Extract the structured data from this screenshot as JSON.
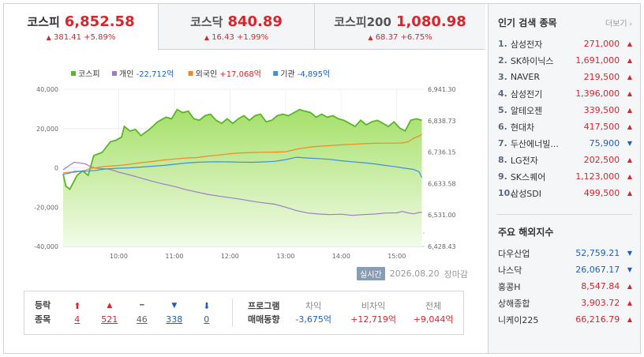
{
  "tabs": [
    {
      "name": "코스피",
      "value": "6,852.58",
      "change": "381.41 +5.89%",
      "arrow": "▲"
    },
    {
      "name": "코스닥",
      "value": "840.89",
      "change": "16.43 +1.99%",
      "arrow": "▲"
    },
    {
      "name": "코스피200",
      "value": "1,080.98",
      "change": "68.37 +6.75%",
      "arrow": "▲"
    }
  ],
  "legend": [
    {
      "label": "코스피",
      "value": "",
      "color": "#5bb52b"
    },
    {
      "label": "개인",
      "value": "-22,712억",
      "color": "#9b7fc4"
    },
    {
      "label": "외국인",
      "value": "+17,068억",
      "color": "#ee8a24"
    },
    {
      "label": "기관",
      "value": "-4,895억",
      "color": "#3d8fe0"
    }
  ],
  "chart_data": {
    "type": "line",
    "x_ticks": [
      "10:00",
      "11:00",
      "12:00",
      "13:00",
      "14:00",
      "15:00"
    ],
    "y_left_ticks": [
      "40,000",
      "20,000",
      "0",
      "-20,000",
      "-40,000"
    ],
    "y_right_ticks": [
      "6,941.30",
      "6,838.73",
      "6,736.15",
      "6,633.58",
      "6,531.00",
      "6,428.43"
    ],
    "y_left_range": [
      -40000,
      40000
    ],
    "y_right_range": [
      6428.43,
      6941.3
    ],
    "x_range": [
      9.0,
      15.5
    ],
    "series": [
      {
        "name": "코스피",
        "axis": "right",
        "color": "#5bb52b",
        "points": [
          [
            9.0,
            6665
          ],
          [
            9.05,
            6625
          ],
          [
            9.12,
            6615
          ],
          [
            9.25,
            6660
          ],
          [
            9.35,
            6675
          ],
          [
            9.45,
            6660
          ],
          [
            9.55,
            6725
          ],
          [
            9.7,
            6735
          ],
          [
            9.85,
            6770
          ],
          [
            9.95,
            6775
          ],
          [
            10.05,
            6785
          ],
          [
            10.1,
            6820
          ],
          [
            10.2,
            6805
          ],
          [
            10.3,
            6810
          ],
          [
            10.4,
            6790
          ],
          [
            10.55,
            6810
          ],
          [
            10.7,
            6835
          ],
          [
            10.85,
            6850
          ],
          [
            10.95,
            6845
          ],
          [
            11.05,
            6875
          ],
          [
            11.15,
            6865
          ],
          [
            11.25,
            6870
          ],
          [
            11.35,
            6845
          ],
          [
            11.45,
            6840
          ],
          [
            11.55,
            6855
          ],
          [
            11.65,
            6860
          ],
          [
            11.75,
            6840
          ],
          [
            11.85,
            6830
          ],
          [
            11.95,
            6845
          ],
          [
            12.05,
            6830
          ],
          [
            12.15,
            6845
          ],
          [
            12.25,
            6855
          ],
          [
            12.35,
            6840
          ],
          [
            12.45,
            6855
          ],
          [
            12.55,
            6860
          ],
          [
            12.65,
            6835
          ],
          [
            12.75,
            6840
          ],
          [
            12.85,
            6855
          ],
          [
            12.95,
            6860
          ],
          [
            13.05,
            6855
          ],
          [
            13.15,
            6865
          ],
          [
            13.25,
            6875
          ],
          [
            13.35,
            6870
          ],
          [
            13.45,
            6865
          ],
          [
            13.55,
            6850
          ],
          [
            13.65,
            6860
          ],
          [
            13.75,
            6850
          ],
          [
            13.85,
            6855
          ],
          [
            13.95,
            6845
          ],
          [
            14.05,
            6840
          ],
          [
            14.15,
            6830
          ],
          [
            14.25,
            6820
          ],
          [
            14.35,
            6840
          ],
          [
            14.45,
            6825
          ],
          [
            14.55,
            6835
          ],
          [
            14.65,
            6840
          ],
          [
            14.75,
            6830
          ],
          [
            14.85,
            6820
          ],
          [
            14.95,
            6835
          ],
          [
            15.05,
            6815
          ],
          [
            15.15,
            6805
          ],
          [
            15.25,
            6840
          ],
          [
            15.35,
            6845
          ],
          [
            15.45,
            6840
          ]
        ]
      },
      {
        "name": "개인",
        "axis": "left",
        "color": "#9b7fc4",
        "points": [
          [
            9.0,
            -1000
          ],
          [
            9.1,
            1000
          ],
          [
            9.2,
            2800
          ],
          [
            9.3,
            2500
          ],
          [
            9.4,
            2000
          ],
          [
            9.5,
            500
          ],
          [
            9.6,
            -200
          ],
          [
            9.7,
            -400
          ],
          [
            9.8,
            -600
          ],
          [
            9.9,
            -1200
          ],
          [
            10.0,
            -2200
          ],
          [
            10.2,
            -3600
          ],
          [
            10.4,
            -5200
          ],
          [
            10.6,
            -6800
          ],
          [
            10.8,
            -8200
          ],
          [
            11.0,
            -9500
          ],
          [
            11.2,
            -11000
          ],
          [
            11.4,
            -12300
          ],
          [
            11.6,
            -13500
          ],
          [
            11.8,
            -14400
          ],
          [
            12.0,
            -15200
          ],
          [
            12.2,
            -16000
          ],
          [
            12.4,
            -17000
          ],
          [
            12.6,
            -17800
          ],
          [
            12.8,
            -18500
          ],
          [
            13.0,
            -20000
          ],
          [
            13.2,
            -21800
          ],
          [
            13.4,
            -23000
          ],
          [
            13.6,
            -23500
          ],
          [
            13.8,
            -23800
          ],
          [
            14.0,
            -23600
          ],
          [
            14.2,
            -24200
          ],
          [
            14.4,
            -23800
          ],
          [
            14.6,
            -23500
          ],
          [
            14.8,
            -23000
          ],
          [
            15.0,
            -22900
          ],
          [
            15.1,
            -22200
          ],
          [
            15.2,
            -22900
          ],
          [
            15.3,
            -23400
          ],
          [
            15.4,
            -22700
          ],
          [
            15.45,
            -22712
          ]
        ]
      },
      {
        "name": "외국인",
        "axis": "left",
        "color": "#ee8a24",
        "points": [
          [
            9.0,
            -2500
          ],
          [
            9.1,
            -2200
          ],
          [
            9.2,
            -2300
          ],
          [
            9.3,
            -1800
          ],
          [
            9.4,
            -1200
          ],
          [
            9.5,
            -200
          ],
          [
            9.6,
            100
          ],
          [
            9.7,
            600
          ],
          [
            9.8,
            800
          ],
          [
            10.0,
            1200
          ],
          [
            10.2,
            1800
          ],
          [
            10.4,
            2600
          ],
          [
            10.6,
            3200
          ],
          [
            10.8,
            4000
          ],
          [
            11.0,
            4500
          ],
          [
            11.2,
            5000
          ],
          [
            11.4,
            5200
          ],
          [
            11.6,
            6000
          ],
          [
            11.8,
            6500
          ],
          [
            12.0,
            7200
          ],
          [
            12.2,
            7600
          ],
          [
            12.4,
            7800
          ],
          [
            12.6,
            7900
          ],
          [
            12.8,
            8000
          ],
          [
            13.0,
            8200
          ],
          [
            13.2,
            9500
          ],
          [
            13.4,
            10400
          ],
          [
            13.6,
            11000
          ],
          [
            13.8,
            11300
          ],
          [
            14.0,
            11700
          ],
          [
            14.2,
            12000
          ],
          [
            14.4,
            12300
          ],
          [
            14.6,
            12500
          ],
          [
            14.8,
            12600
          ],
          [
            15.0,
            12600
          ],
          [
            15.1,
            12700
          ],
          [
            15.2,
            13200
          ],
          [
            15.3,
            15000
          ],
          [
            15.4,
            16200
          ],
          [
            15.45,
            17068
          ]
        ]
      },
      {
        "name": "기관",
        "axis": "left",
        "color": "#3d8fe0",
        "points": [
          [
            9.0,
            -3200
          ],
          [
            9.1,
            -2800
          ],
          [
            9.2,
            -1800
          ],
          [
            9.3,
            -1700
          ],
          [
            9.4,
            -1800
          ],
          [
            9.5,
            -1500
          ],
          [
            9.6,
            -1300
          ],
          [
            9.7,
            -800
          ],
          [
            9.8,
            -500
          ],
          [
            10.0,
            -200
          ],
          [
            10.2,
            0
          ],
          [
            10.4,
            400
          ],
          [
            10.6,
            800
          ],
          [
            10.8,
            1200
          ],
          [
            11.0,
            1800
          ],
          [
            11.2,
            2400
          ],
          [
            11.4,
            2800
          ],
          [
            11.6,
            3000
          ],
          [
            11.8,
            3100
          ],
          [
            12.0,
            3000
          ],
          [
            12.2,
            2900
          ],
          [
            12.4,
            2800
          ],
          [
            12.6,
            3000
          ],
          [
            12.8,
            3300
          ],
          [
            13.0,
            4200
          ],
          [
            13.2,
            5400
          ],
          [
            13.4,
            5000
          ],
          [
            13.6,
            4700
          ],
          [
            13.8,
            4300
          ],
          [
            14.0,
            3600
          ],
          [
            14.2,
            3100
          ],
          [
            14.4,
            2600
          ],
          [
            14.6,
            2000
          ],
          [
            14.8,
            1200
          ],
          [
            15.0,
            500
          ],
          [
            15.1,
            0
          ],
          [
            15.2,
            -400
          ],
          [
            15.3,
            -800
          ],
          [
            15.4,
            -2000
          ],
          [
            15.45,
            -4895
          ]
        ]
      }
    ]
  },
  "timestamp": {
    "realtime": "실시간",
    "date": "2026.08.20",
    "status": "장마감"
  },
  "updown": {
    "label_line1": "등락",
    "label_line2": "종목",
    "items": [
      {
        "symbol": "⬆",
        "count": "4",
        "kind": "upper"
      },
      {
        "symbol": "▲",
        "count": "521",
        "kind": "up"
      },
      {
        "symbol": "━",
        "count": "46",
        "kind": "flat"
      },
      {
        "symbol": "▼",
        "count": "338",
        "kind": "down"
      },
      {
        "symbol": "⬇",
        "count": "0",
        "kind": "lower"
      }
    ]
  },
  "program": {
    "label_line1": "프로그램",
    "label_line2": "매매동향",
    "cols": [
      {
        "header": "차익",
        "value": "-3,675억",
        "color": "blue"
      },
      {
        "header": "비차익",
        "value": "+12,719억",
        "color": "red"
      },
      {
        "header": "전체",
        "value": "+9,044억",
        "color": "red"
      }
    ]
  },
  "popular": {
    "title": "인기 검색 종목",
    "more": "더보기",
    "items": [
      {
        "rank": "1.",
        "name": "삼성전자",
        "price": "271,000",
        "dir": "up"
      },
      {
        "rank": "2.",
        "name": "SK하이닉스",
        "price": "1,691,000",
        "dir": "up"
      },
      {
        "rank": "3.",
        "name": "NAVER",
        "price": "219,500",
        "dir": "up"
      },
      {
        "rank": "4.",
        "name": "삼성전기",
        "price": "1,396,000",
        "dir": "up"
      },
      {
        "rank": "5.",
        "name": "알테오젠",
        "price": "339,500",
        "dir": "up"
      },
      {
        "rank": "6.",
        "name": "현대차",
        "price": "417,500",
        "dir": "up"
      },
      {
        "rank": "7.",
        "name": "두산에너빌...",
        "price": "75,900",
        "dir": "down"
      },
      {
        "rank": "8.",
        "name": "LG전자",
        "price": "202,500",
        "dir": "up"
      },
      {
        "rank": "9.",
        "name": "SK스퀘어",
        "price": "1,123,000",
        "dir": "up"
      },
      {
        "rank": "10.",
        "name": "삼성SDI",
        "price": "499,500",
        "dir": "up"
      }
    ]
  },
  "world": {
    "title": "주요 해외지수",
    "items": [
      {
        "name": "다우산업",
        "value": "52,759.21",
        "dir": "down"
      },
      {
        "name": "나스닥",
        "value": "26,067.17",
        "dir": "down"
      },
      {
        "name": "홍콩H",
        "value": "8,547.84",
        "dir": "up"
      },
      {
        "name": "상해종합",
        "value": "3,903.72",
        "dir": "up"
      },
      {
        "name": "니케이225",
        "value": "66,216.79",
        "dir": "up"
      }
    ]
  },
  "colors": {
    "up": "#d8262d",
    "down": "#1c5fc4",
    "flat": "#666666"
  }
}
